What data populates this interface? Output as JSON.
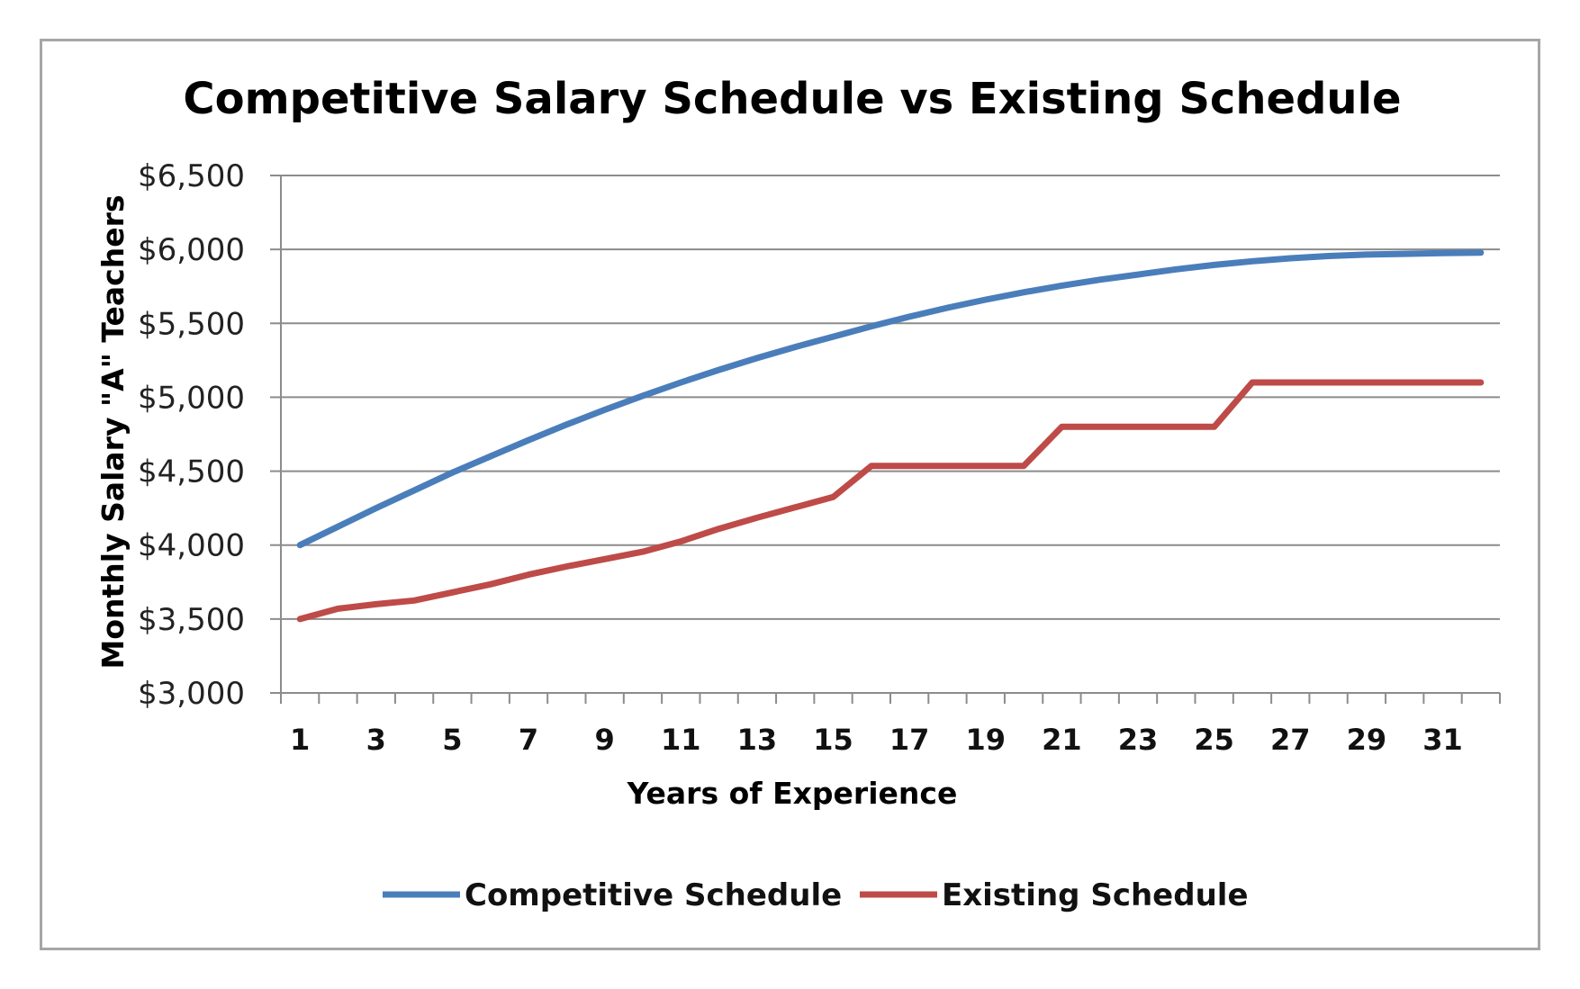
{
  "chart_data": {
    "type": "line",
    "title": "Competitive Salary Schedule vs Existing Schedule",
    "xlabel": "Years of Experience",
    "ylabel": "Monthly Salary \"A\" Teachers",
    "x": [
      1,
      2,
      3,
      4,
      5,
      6,
      7,
      8,
      9,
      10,
      11,
      12,
      13,
      14,
      15,
      16,
      17,
      18,
      19,
      20,
      21,
      22,
      23,
      24,
      25,
      26,
      27,
      28,
      29,
      30,
      31,
      32
    ],
    "x_tick_labels": [
      "1",
      "3",
      "5",
      "7",
      "9",
      "11",
      "13",
      "15",
      "17",
      "19",
      "21",
      "23",
      "25",
      "27",
      "29",
      "31"
    ],
    "y_tick_labels": [
      "$3,000",
      "$3,500",
      "$4,000",
      "$4,500",
      "$5,000",
      "$5,500",
      "$6,000",
      "$6,500"
    ],
    "ylim": [
      3000,
      6500
    ],
    "grid": true,
    "legend_position": "bottom",
    "series": [
      {
        "name": "Competitive Schedule",
        "color": "#4a7ebb",
        "values": [
          4000,
          4125,
          4250,
          4370,
          4490,
          4600,
          4710,
          4815,
          4915,
          5010,
          5100,
          5185,
          5265,
          5340,
          5410,
          5480,
          5545,
          5605,
          5660,
          5710,
          5755,
          5795,
          5830,
          5865,
          5895,
          5920,
          5940,
          5955,
          5965,
          5970,
          5975,
          5978
        ]
      },
      {
        "name": "Existing Schedule",
        "color": "#be4b48",
        "values": [
          3500,
          3570,
          3600,
          3625,
          3680,
          3735,
          3800,
          3855,
          3905,
          3955,
          4025,
          4110,
          4185,
          4255,
          4325,
          4535,
          4535,
          4535,
          4535,
          4535,
          4800,
          4800,
          4800,
          4800,
          4800,
          5100,
          5100,
          5100,
          5100,
          5100,
          5100,
          5100
        ]
      }
    ]
  }
}
